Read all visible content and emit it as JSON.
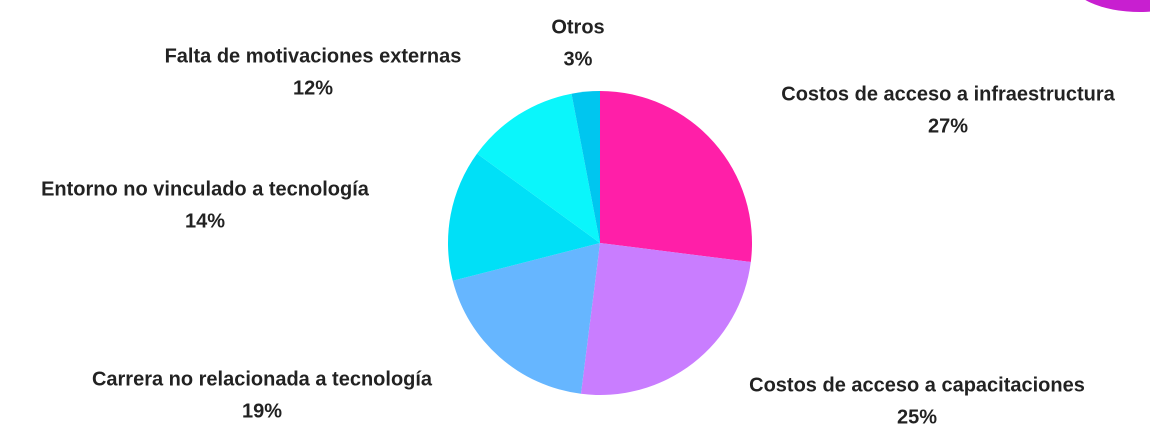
{
  "chart_data": {
    "type": "pie",
    "categories": [
      "Costos de acceso a infraestructura",
      "Costos de acceso a capacitaciones",
      "Carrera no relacionada a tecnología",
      "Entorno no vinculado a tecnología",
      "Falta de motivaciones externas",
      "Otros"
    ],
    "values": [
      27,
      25,
      19,
      14,
      12,
      3
    ],
    "value_labels": [
      "27%",
      "25%",
      "19%",
      "14%",
      "12%",
      "3%"
    ],
    "colors": [
      "#ff1fa8",
      "#c97dff",
      "#66b6ff",
      "#00e0f7",
      "#0af6fb",
      "#00c6ef"
    ]
  }
}
